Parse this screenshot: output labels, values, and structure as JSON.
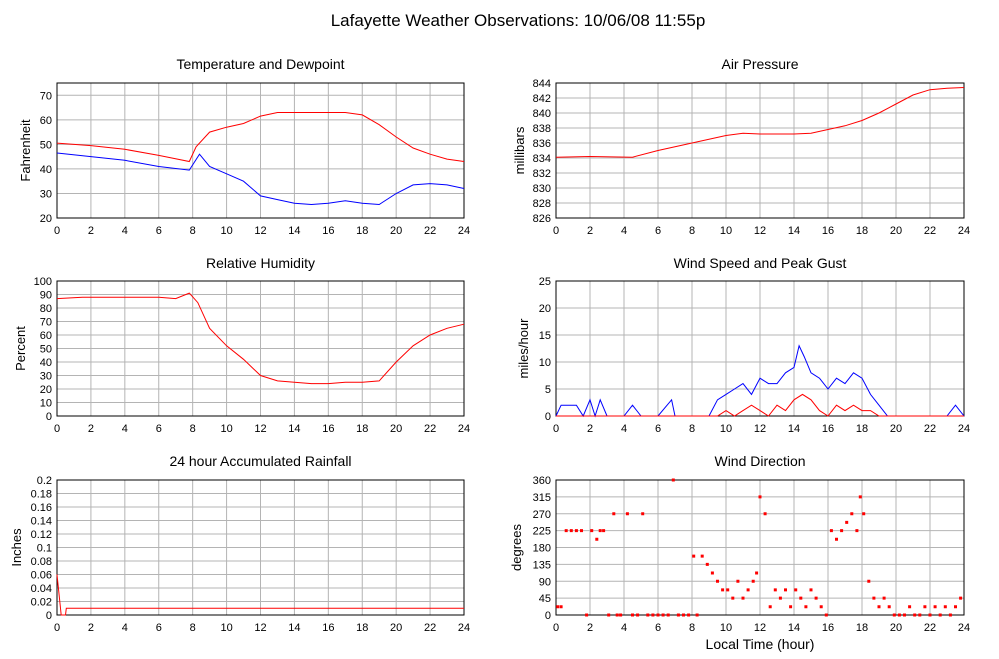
{
  "page_title": "Lafayette Weather Observations: 10/06/08 11:55p",
  "x_axis_label": "Local Time (hour)",
  "colors": {
    "red": "#ff0000",
    "blue": "#0000ff",
    "grid": "#b4b4b4",
    "frame": "#000000"
  },
  "chart_data": [
    {
      "id": "temp",
      "type": "line",
      "title": "Temperature and Dewpoint",
      "ylabel": "Fahrenheit",
      "xlim": [
        0,
        24
      ],
      "ylim": [
        20,
        75
      ],
      "xticks": [
        0,
        2,
        4,
        6,
        8,
        10,
        12,
        14,
        16,
        18,
        20,
        22,
        24
      ],
      "yticks": [
        20,
        30,
        40,
        50,
        60,
        70
      ],
      "series": [
        {
          "color": "red",
          "x": [
            0,
            2,
            4,
            6,
            7.8,
            8.2,
            9,
            10,
            11,
            12,
            13,
            14,
            15,
            16,
            17,
            18,
            19,
            20,
            21,
            22,
            23,
            24
          ],
          "y": [
            50.5,
            49.5,
            48,
            45.5,
            43,
            49,
            55,
            57,
            58.5,
            61.5,
            63,
            63,
            63,
            63,
            63,
            62,
            58,
            53,
            48.5,
            46,
            44,
            43
          ]
        },
        {
          "color": "blue",
          "x": [
            0,
            2,
            4,
            6,
            7.8,
            8.4,
            9,
            10,
            11,
            12,
            13,
            14,
            15,
            16,
            17,
            18,
            19,
            20,
            21,
            22,
            23,
            24
          ],
          "y": [
            46.5,
            45,
            43.5,
            41,
            39.5,
            46,
            41,
            38,
            35,
            29,
            27.5,
            26,
            25.5,
            26,
            27,
            26,
            25.5,
            30,
            33.5,
            34,
            33.5,
            32
          ]
        }
      ]
    },
    {
      "id": "pressure",
      "type": "line",
      "title": "Air Pressure",
      "ylabel": "millibars",
      "xlim": [
        0,
        24
      ],
      "ylim": [
        826,
        844
      ],
      "xticks": [
        0,
        2,
        4,
        6,
        8,
        10,
        12,
        14,
        16,
        18,
        20,
        22,
        24
      ],
      "yticks": [
        826,
        828,
        830,
        832,
        834,
        836,
        838,
        840,
        842,
        844
      ],
      "series": [
        {
          "color": "red",
          "x": [
            0,
            2,
            4.5,
            6,
            8,
            10,
            11,
            12,
            13,
            14,
            15,
            16,
            17,
            18,
            19,
            20,
            21,
            22,
            23,
            24
          ],
          "y": [
            834.1,
            834.2,
            834.1,
            835,
            836,
            837,
            837.3,
            837.2,
            837.2,
            837.2,
            837.3,
            837.8,
            838.3,
            839,
            840,
            841.2,
            842.4,
            843.1,
            843.3,
            843.4
          ]
        }
      ]
    },
    {
      "id": "humidity",
      "type": "line",
      "title": "Relative Humidity",
      "ylabel": "Percent",
      "xlim": [
        0,
        24
      ],
      "ylim": [
        0,
        100
      ],
      "xticks": [
        0,
        2,
        4,
        6,
        8,
        10,
        12,
        14,
        16,
        18,
        20,
        22,
        24
      ],
      "yticks": [
        0,
        10,
        20,
        30,
        40,
        50,
        60,
        70,
        80,
        90,
        100
      ],
      "series": [
        {
          "color": "red",
          "x": [
            0,
            1.5,
            3,
            5,
            6,
            7,
            7.8,
            8.3,
            9,
            10,
            11,
            12,
            13,
            14,
            15,
            16,
            17,
            18,
            19,
            20,
            21,
            22,
            23,
            24
          ],
          "y": [
            87,
            88,
            88,
            88,
            88,
            87,
            91,
            84,
            65,
            52,
            42,
            30,
            26,
            25,
            24,
            24,
            25,
            25,
            26,
            40,
            52,
            60,
            65,
            68
          ]
        }
      ]
    },
    {
      "id": "wind",
      "type": "line",
      "title": "Wind Speed and Peak Gust",
      "ylabel": "miles/hour",
      "xlim": [
        0,
        24
      ],
      "ylim": [
        0,
        25
      ],
      "xticks": [
        0,
        2,
        4,
        6,
        8,
        10,
        12,
        14,
        16,
        18,
        20,
        22,
        24
      ],
      "yticks": [
        0,
        5,
        10,
        15,
        20,
        25
      ],
      "series": [
        {
          "color": "blue",
          "x": [
            0,
            0.3,
            0.6,
            1.2,
            1.6,
            2,
            2.3,
            2.6,
            3,
            3.3,
            4,
            4.5,
            5,
            6,
            6.8,
            7,
            8,
            9,
            9.5,
            10,
            10.5,
            11,
            11.5,
            12,
            12.5,
            13,
            13.5,
            14,
            14.3,
            14.6,
            15,
            15.5,
            16,
            16.5,
            17,
            17.5,
            18,
            18.5,
            19,
            19.5,
            20,
            21,
            22,
            23,
            23.5,
            24
          ],
          "y": [
            0,
            2,
            2,
            2,
            0,
            3,
            0,
            3,
            0,
            0,
            0,
            2,
            0,
            0,
            3,
            0,
            0,
            0,
            3,
            4,
            5,
            6,
            4,
            7,
            6,
            6,
            8,
            9,
            13,
            11,
            8,
            7,
            5,
            7,
            6,
            8,
            7,
            4,
            2,
            0,
            0,
            0,
            0,
            0,
            2,
            0
          ]
        },
        {
          "color": "red",
          "x": [
            0,
            9.5,
            10,
            10.5,
            11,
            11.5,
            12,
            12.5,
            13,
            13.5,
            14,
            14.5,
            15,
            15.5,
            16,
            16.5,
            17,
            17.5,
            18,
            18.5,
            19,
            24
          ],
          "y": [
            0,
            0,
            1,
            0,
            1,
            2,
            1,
            0,
            2,
            1,
            3,
            4,
            3,
            1,
            0,
            2,
            1,
            2,
            1,
            1,
            0,
            0
          ]
        }
      ]
    },
    {
      "id": "rain",
      "type": "line",
      "title": "24 hour Accumulated Rainfall",
      "ylabel": "Inches",
      "xlim": [
        0,
        24
      ],
      "ylim": [
        0,
        0.2
      ],
      "xticks": [
        0,
        2,
        4,
        6,
        8,
        10,
        12,
        14,
        16,
        18,
        20,
        22,
        24
      ],
      "yticks": [
        0,
        0.02,
        0.04,
        0.06,
        0.08,
        0.1,
        0.12,
        0.14,
        0.16,
        0.18,
        0.2
      ],
      "series": [
        {
          "color": "red",
          "x": [
            0,
            0.25,
            0.5,
            0.55,
            24
          ],
          "y": [
            0.06,
            0.0,
            0.0,
            0.01,
            0.01
          ]
        }
      ]
    },
    {
      "id": "direction",
      "type": "scatter",
      "title": "Wind Direction",
      "ylabel": "degrees",
      "xlabel": "Local Time (hour)",
      "xlim": [
        0,
        24
      ],
      "ylim": [
        0,
        360
      ],
      "xticks": [
        0,
        2,
        4,
        6,
        8,
        10,
        12,
        14,
        16,
        18,
        20,
        22,
        24
      ],
      "yticks": [
        0,
        45,
        90,
        135,
        180,
        225,
        270,
        315,
        360
      ],
      "series": [
        {
          "color": "red",
          "x": [
            0.1,
            0.3,
            0.6,
            0.9,
            1.2,
            1.5,
            1.8,
            2.1,
            2.4,
            2.6,
            2.8,
            3.1,
            3.4,
            3.6,
            3.8,
            4.2,
            4.5,
            4.8,
            5.1,
            5.4,
            5.7,
            6.0,
            6.3,
            6.6,
            6.9,
            7.2,
            7.5,
            7.8,
            8.1,
            8.3,
            8.6,
            8.9,
            9.2,
            9.5,
            9.8,
            10.1,
            10.4,
            10.7,
            11.0,
            11.3,
            11.6,
            11.8,
            12.0,
            12.3,
            12.6,
            12.9,
            13.2,
            13.5,
            13.8,
            14.1,
            14.4,
            14.7,
            15.0,
            15.3,
            15.6,
            15.9,
            16.2,
            16.5,
            16.8,
            17.1,
            17.4,
            17.7,
            17.9,
            18.1,
            18.4,
            18.7,
            19.0,
            19.3,
            19.6,
            19.9,
            20.2,
            20.5,
            20.8,
            21.1,
            21.4,
            21.7,
            22.0,
            22.3,
            22.6,
            22.9,
            23.2,
            23.5,
            23.8
          ],
          "y": [
            22,
            22,
            225,
            225,
            225,
            225,
            0,
            225,
            202,
            225,
            225,
            0,
            270,
            0,
            0,
            270,
            0,
            0,
            270,
            0,
            0,
            0,
            0,
            0,
            360,
            0,
            0,
            0,
            157,
            0,
            157,
            135,
            112,
            90,
            67,
            67,
            45,
            90,
            45,
            67,
            90,
            112,
            315,
            270,
            22,
            67,
            45,
            67,
            22,
            67,
            45,
            22,
            67,
            45,
            22,
            0,
            225,
            202,
            225,
            247,
            270,
            225,
            315,
            270,
            90,
            45,
            22,
            45,
            22,
            0,
            0,
            0,
            22,
            0,
            0,
            22,
            0,
            22,
            0,
            22,
            0,
            22,
            45
          ]
        }
      ]
    }
  ]
}
